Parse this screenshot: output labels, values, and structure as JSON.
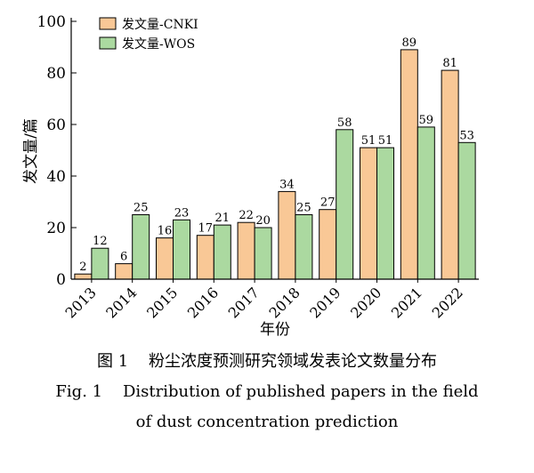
{
  "chart_data": {
    "type": "bar",
    "ylabel": "发文量/篇",
    "xlabel": "年份",
    "ylim": [
      0,
      100
    ],
    "yticks": [
      0,
      20,
      40,
      60,
      80,
      100
    ],
    "grid": false,
    "legend_position": "top-left",
    "categories": [
      "2013",
      "2014",
      "2015",
      "2016",
      "2017",
      "2018",
      "2019",
      "2020",
      "2021",
      "2022"
    ],
    "series": [
      {
        "name": "发文量-CNKI",
        "color": "#f9c896",
        "values": [
          2,
          6,
          16,
          17,
          22,
          34,
          27,
          51,
          89,
          81
        ]
      },
      {
        "name": "发文量-WOS",
        "color": "#abd9a0",
        "values": [
          12,
          25,
          23,
          21,
          20,
          25,
          58,
          51,
          59,
          53
        ]
      }
    ]
  },
  "caption": {
    "line1": "图 1    粉尘浓度预测研究领域发表论文数量分布",
    "line2": "Fig. 1    Distribution of published papers in the field",
    "line3": "of dust concentration prediction"
  }
}
